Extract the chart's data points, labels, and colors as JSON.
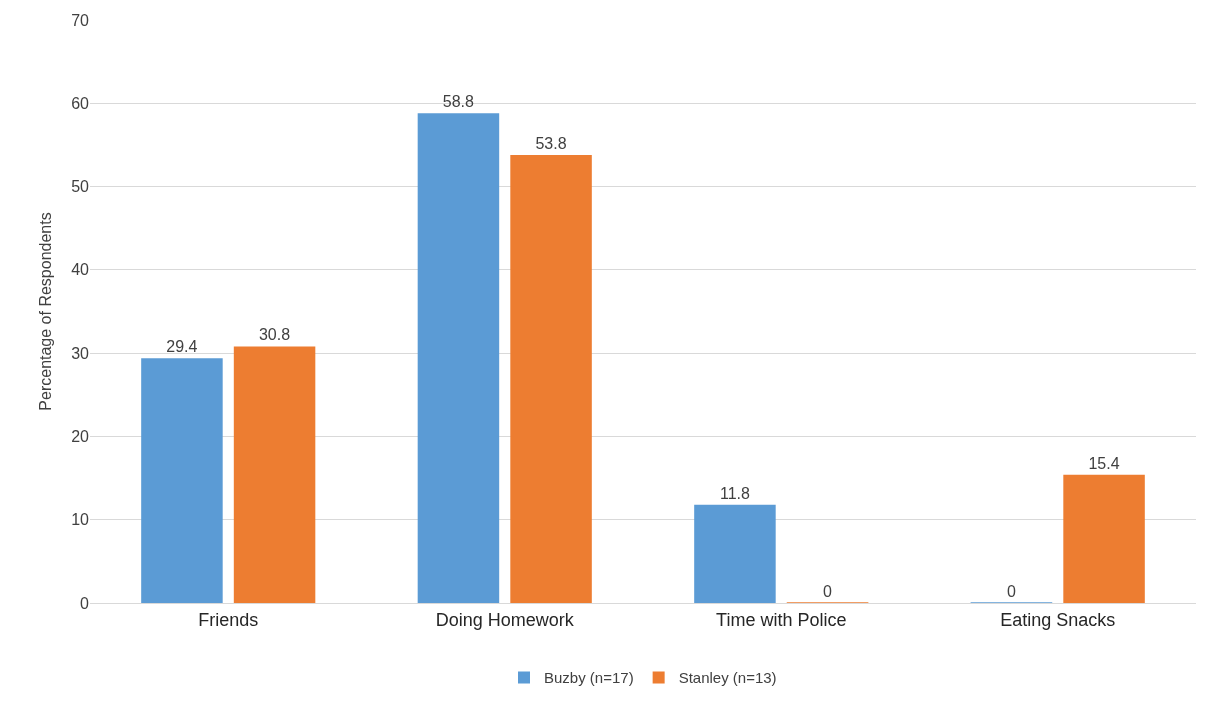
{
  "chart_data": {
    "type": "bar",
    "ylabel": "Percentage of Respondents",
    "categories": [
      "Friends",
      "Doing Homework",
      "Time with Police",
      "Eating Snacks"
    ],
    "series": [
      {
        "name": "Buzby (n=17)",
        "color": "#5b9bd5",
        "values": [
          29.4,
          58.8,
          11.8,
          0
        ]
      },
      {
        "name": "Stanley (n=13)",
        "color": "#ed7d31",
        "values": [
          30.8,
          53.8,
          0,
          15.4
        ]
      }
    ],
    "ylim": [
      0,
      70
    ],
    "yticks": [
      0,
      10,
      20,
      30,
      40,
      50,
      60,
      70
    ],
    "grid": "y",
    "legend": "bottom",
    "data_labels": true
  }
}
